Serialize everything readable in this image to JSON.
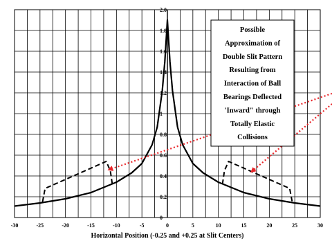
{
  "chart_data": {
    "type": "line",
    "title": "",
    "xlabel": "Horizontal Position (-0.25 and +0.25 at Slit Centers)",
    "ylabel": "",
    "xlim": [
      -30,
      30
    ],
    "ylim": [
      0,
      2.0
    ],
    "grid": true,
    "x_ticks": [
      "-30",
      "-25",
      "-20",
      "-15",
      "-10",
      "-5",
      "0",
      "5",
      "10",
      "15",
      "20",
      "25",
      "30"
    ],
    "y_ticks": [
      "0",
      "0.2",
      "0.4",
      "0.6",
      "0.8",
      "1",
      "1.2",
      "1.4",
      "1.6",
      "1.8",
      "2.0"
    ],
    "series": [
      {
        "style": "solid",
        "x": [
          -30,
          -25,
          -20,
          -15,
          -10,
          -7,
          -5,
          -3,
          -2,
          -1,
          -0.5,
          0,
          0.5,
          1,
          2,
          3,
          5,
          7,
          10,
          15,
          20,
          25,
          30
        ],
        "y": [
          0.11,
          0.14,
          0.18,
          0.24,
          0.34,
          0.43,
          0.52,
          0.7,
          0.87,
          1.22,
          1.5,
          1.9,
          1.5,
          1.22,
          0.87,
          0.7,
          0.52,
          0.43,
          0.34,
          0.24,
          0.18,
          0.14,
          0.11
        ]
      },
      {
        "style": "dashed",
        "x": [
          -24.5,
          -24.0,
          -12.0,
          -11.2,
          -10.8
        ],
        "y": [
          0.15,
          0.28,
          0.54,
          0.45,
          0.32
        ]
      },
      {
        "style": "dashed",
        "x": [
          10.8,
          11.2,
          12.0,
          24.0,
          24.5
        ],
        "y": [
          0.32,
          0.45,
          0.54,
          0.28,
          0.15
        ]
      }
    ],
    "annotation": {
      "lines": [
        "Possible",
        "Approximation of",
        "Double Slit Pattern",
        "Resulting from",
        "Interaction of Ball",
        "Bearings Deflected",
        "'Inward\" through",
        "Totally Elastic",
        "Collisions"
      ],
      "arrow_color": "#e8262a"
    }
  }
}
